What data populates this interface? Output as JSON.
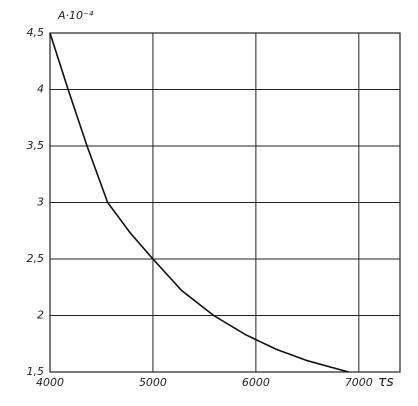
{
  "chart_data": {
    "type": "line",
    "y_label": "A·10⁻⁴",
    "x_label": "τs",
    "x": [
      4000,
      4176,
      4360,
      4560,
      4780,
      5000,
      5280,
      5590,
      5900,
      6200,
      6500,
      6900
    ],
    "series": [
      {
        "color": "#111111",
        "values": [
          4.5,
          4,
          3.5,
          3,
          2.73,
          2.5,
          2.22,
          2.0,
          1.83,
          1.7,
          1.6,
          1.5
        ]
      }
    ],
    "xlim": [
      4000,
      7400
    ],
    "ylim": [
      1.5,
      4.5
    ],
    "xticks": [
      4000,
      5000,
      6000,
      7000
    ],
    "yticks": [
      {
        "value": 1.5,
        "label": "1,5"
      },
      2,
      {
        "value": 2.5,
        "label": "2,5"
      },
      3,
      {
        "value": 3.5,
        "label": "3,5"
      },
      4,
      {
        "value": 4.5,
        "label": "4,5"
      }
    ],
    "grid": true
  }
}
